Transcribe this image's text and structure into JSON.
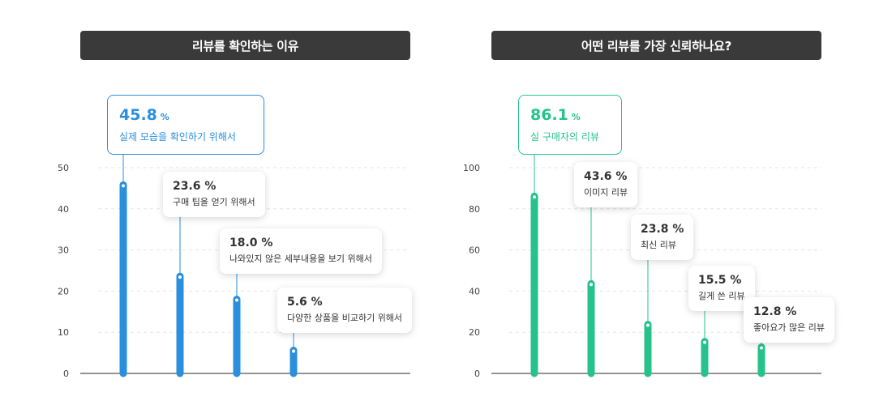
{
  "colors": {
    "blue": "#2a8fdc",
    "green": "#25c38b",
    "title_bg": "#3a3a3a"
  },
  "chart_data": [
    {
      "type": "bar",
      "title": "리뷰를 확인하는 이유",
      "ylim": [
        0,
        50
      ],
      "yticks": [
        0,
        10,
        20,
        30,
        40,
        50
      ],
      "grid": true,
      "color": "#2a8fdc",
      "categories": [
        "실제 모습을 확인하기 위해서",
        "구매 팁을 얻기 위해서",
        "나와있지 않은 세부내용을 보기 위해서",
        "다양한 상품을 비교하기 위해서"
      ],
      "values": [
        45.8,
        23.6,
        18.0,
        5.6
      ],
      "value_labels": [
        "45.8",
        "23.6 %",
        "18.0 %",
        "5.6 %"
      ],
      "unit": "%"
    },
    {
      "type": "bar",
      "title": "어떤 리뷰를 가장 신뢰하나요?",
      "ylim": [
        0,
        100
      ],
      "yticks": [
        0,
        20,
        40,
        60,
        80,
        100
      ],
      "grid": true,
      "color": "#25c38b",
      "categories": [
        "실 구매자의 리뷰",
        "이미지 리뷰",
        "최신 리뷰",
        "길게 쓴 리뷰",
        "좋아요가 많은 리뷰"
      ],
      "values": [
        86.1,
        43.6,
        23.8,
        15.5,
        12.8
      ],
      "value_labels": [
        "86.1",
        "43.6 %",
        "23.8 %",
        "15.5 %",
        "12.8 %"
      ],
      "unit": "%"
    }
  ]
}
